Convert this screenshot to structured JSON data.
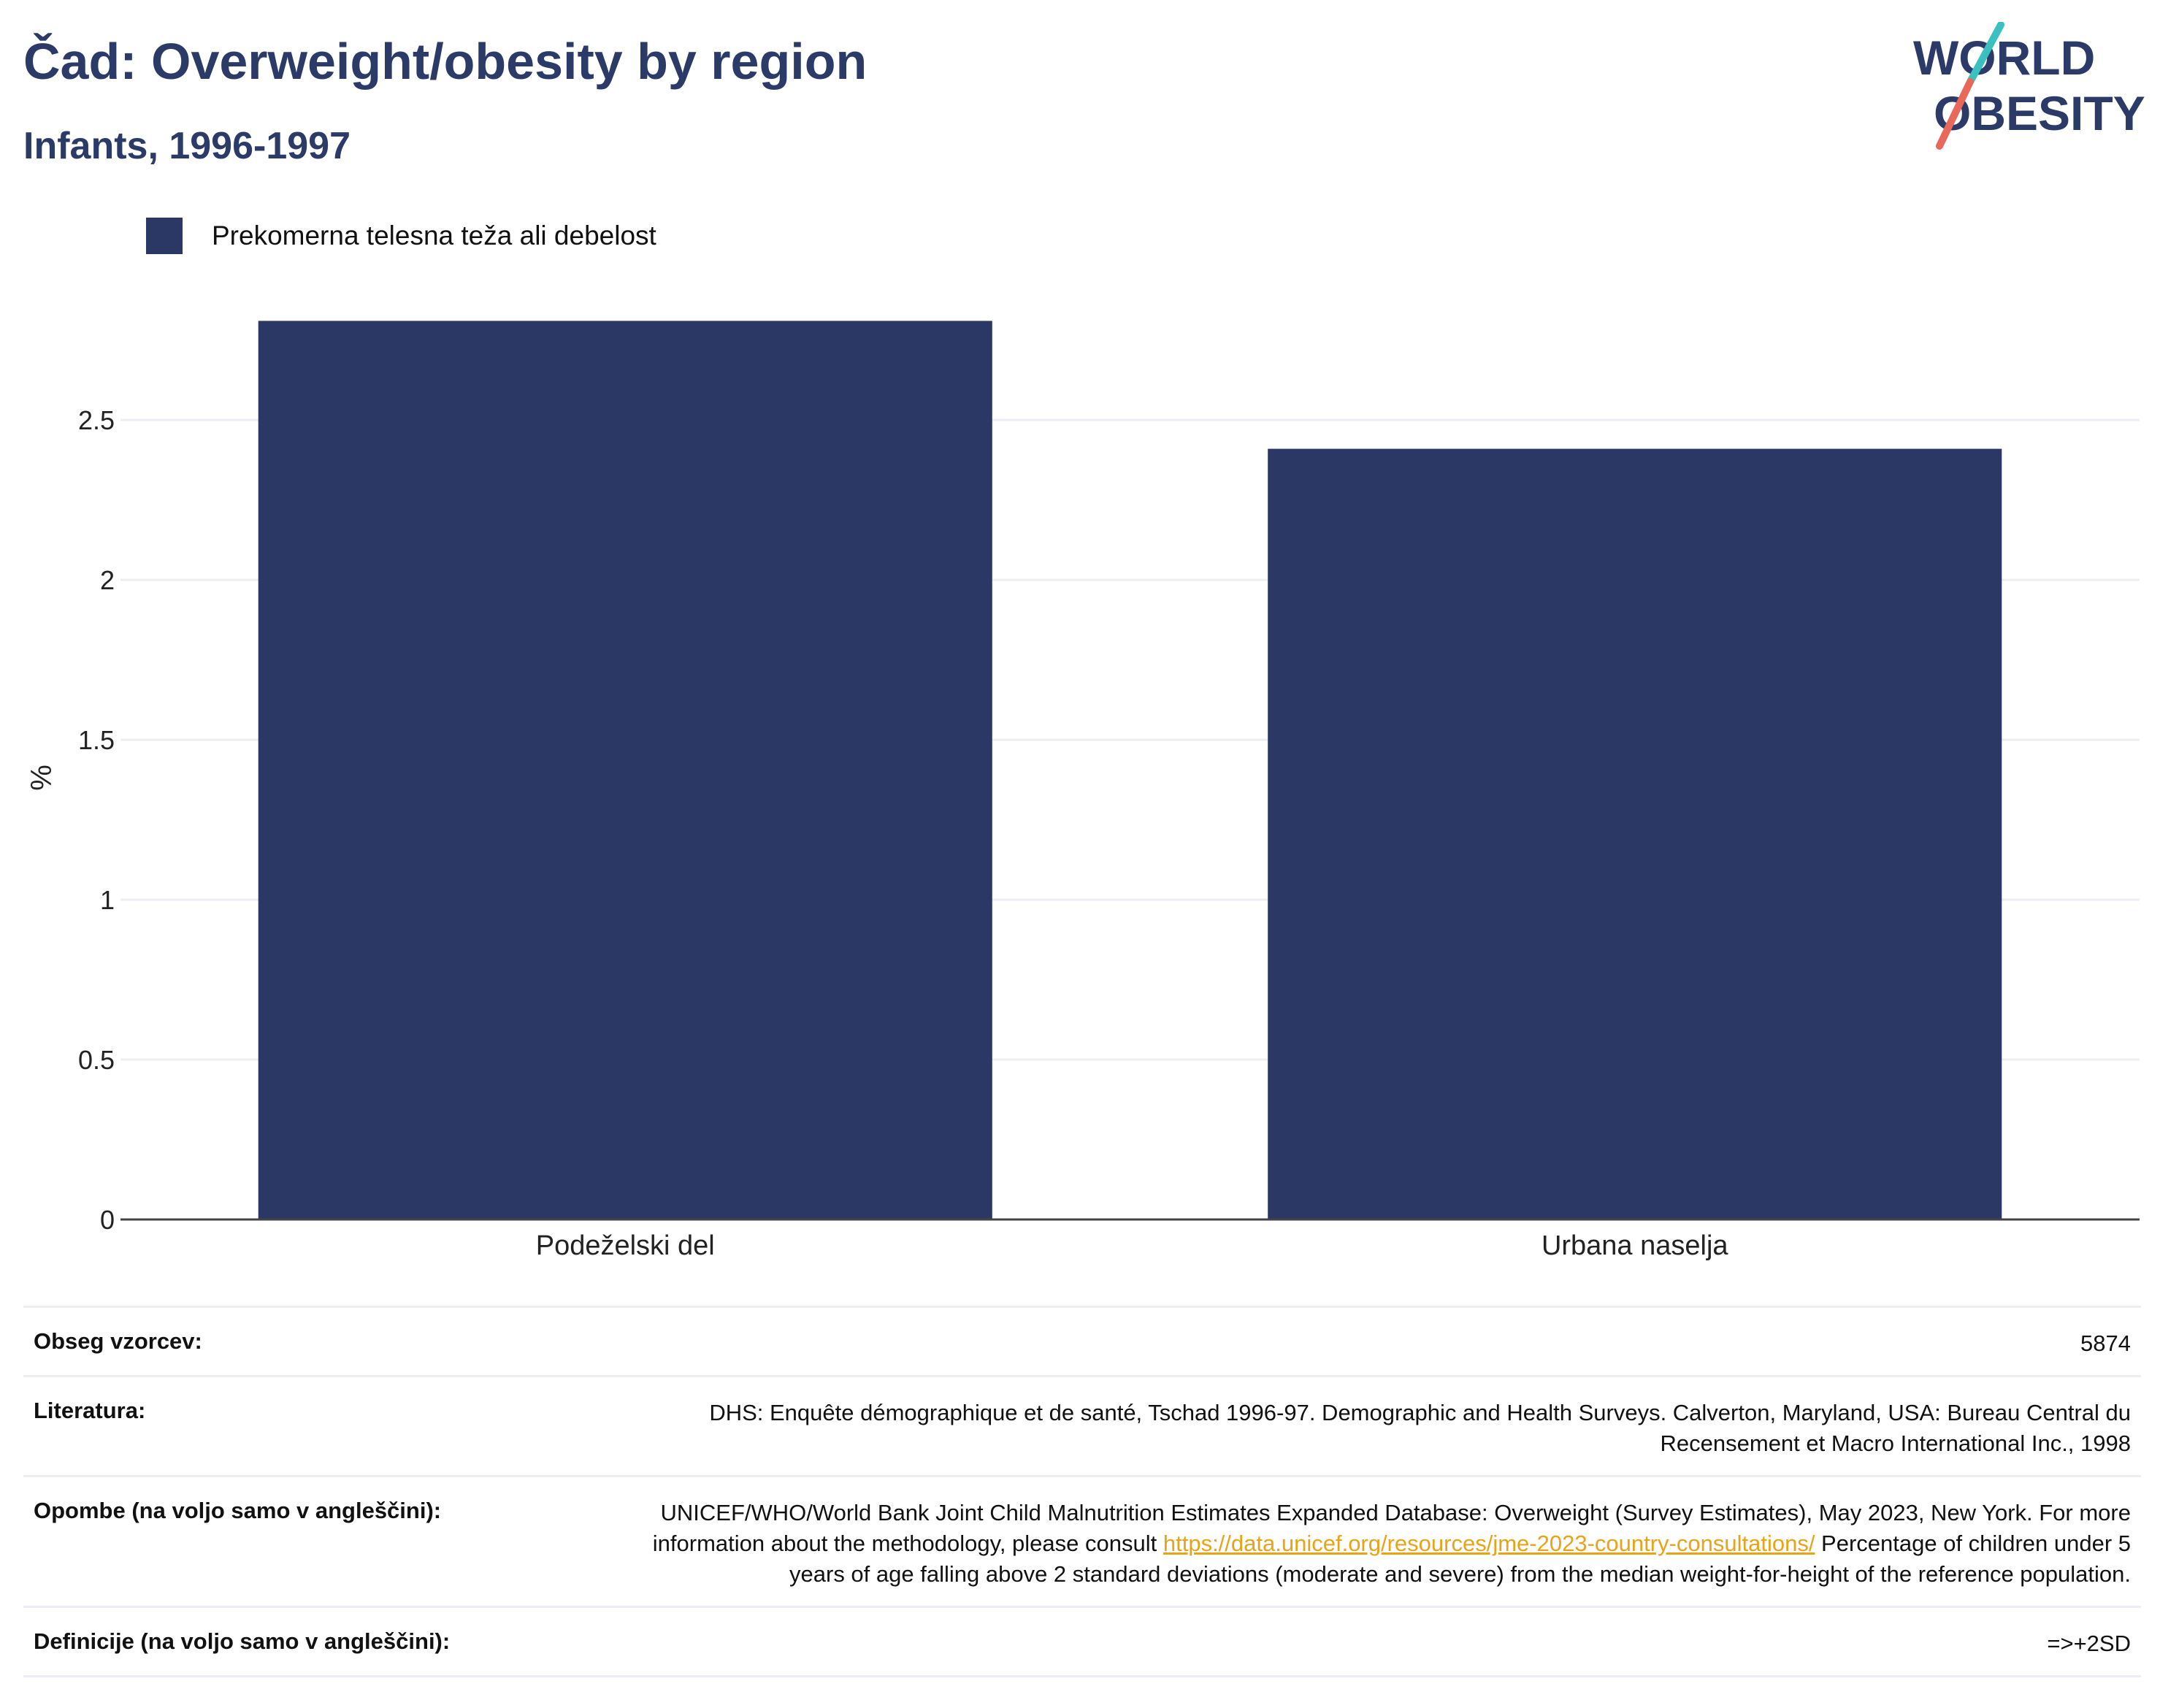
{
  "title": "Čad: Overweight/obesity by region",
  "subtitle": "Infants, 1996-1997",
  "logo": {
    "line1": "WORLD",
    "line2": "OBESITY"
  },
  "colors": {
    "bar": "#2b3764",
    "accent_teal": "#3bbfbf",
    "accent_red": "#e8685a",
    "grid": "#eceef4"
  },
  "chart_data": {
    "type": "bar",
    "categories": [
      "Podeželski del",
      "Urbana naselja"
    ],
    "series": [
      {
        "name": "Prekomerna telesna teža ali debelost",
        "values": [
          2.81,
          2.41
        ]
      }
    ],
    "ylabel": "%",
    "xlabel": "",
    "ylim": [
      0,
      2.9
    ],
    "yticks": [
      0,
      0.5,
      1,
      1.5,
      2,
      2.5
    ],
    "ytick_labels": [
      "0",
      "0.5",
      "1",
      "1.5",
      "2",
      "2.5"
    ],
    "grid": true,
    "legend_position": "top-left"
  },
  "info": [
    {
      "key": "Obseg vzorcev:",
      "value": "5874"
    },
    {
      "key": "Literatura:",
      "value": "DHS: Enquête démographique et de santé, Tschad 1996-97. Demographic and Health Surveys. Calverton, Maryland, USA: Bureau Central du Recensement et Macro International Inc., 1998"
    },
    {
      "key": "Opombe (na voljo samo v angleščini):",
      "value_before": "UNICEF/WHO/World Bank Joint Child Malnutrition Estimates Expanded Database: Overweight (Survey Estimates), May 2023, New York. For more information about the methodology, please consult ",
      "link": "https://data.unicef.org/resources/jme-2023-country-consultations/",
      "value_after": " Percentage of children under 5 years of age falling above 2 standard deviations (moderate and severe) from the median weight-for-height of the reference population."
    },
    {
      "key": "Definicije (na voljo samo v angleščini):",
      "value": "=>+2SD"
    }
  ]
}
